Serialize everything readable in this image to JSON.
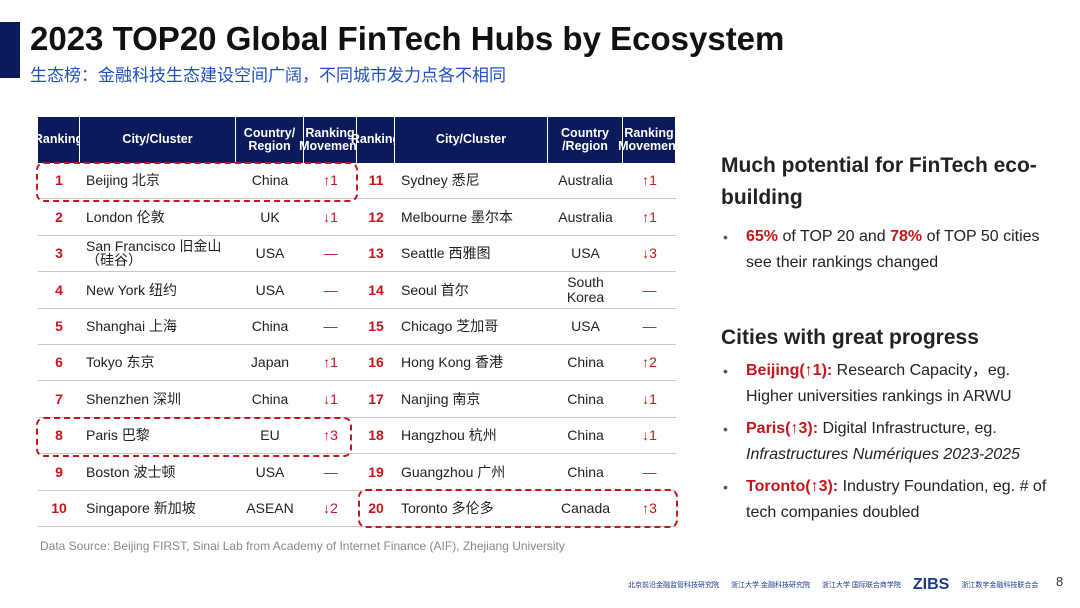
{
  "header": {
    "title": "2023 TOP20 Global FinTech Hubs by Ecosystem",
    "subtitle": "生态榜：金融科技生态建设空间广阔，不同城市发力点各不相同"
  },
  "table": {
    "headers": [
      "Ranking",
      "City/Cluster",
      "Country/ Region",
      "Ranking Movement",
      "Ranking",
      "City/Cluster",
      "Country /Region",
      "Ranking Movement"
    ],
    "rows": [
      [
        1,
        "Beijing 北京",
        "China",
        "↑1",
        11,
        "Sydney 悉尼",
        "Australia",
        "↑1"
      ],
      [
        2,
        "London 伦敦",
        "UK",
        "↓1",
        12,
        "Melbourne 墨尔本",
        "Australia",
        "↑1"
      ],
      [
        3,
        "San Francisco 旧金山（硅谷）",
        "USA",
        "—",
        13,
        "Seattle 西雅图",
        "USA",
        "↓3"
      ],
      [
        4,
        "New York 纽约",
        "USA",
        "—",
        14,
        "Seoul 首尔",
        "South Korea",
        "—"
      ],
      [
        5,
        "Shanghai 上海",
        "China",
        "—",
        15,
        "Chicago 芝加哥",
        "USA",
        "—"
      ],
      [
        6,
        "Tokyo 东京",
        "Japan",
        "↑1",
        16,
        "Hong Kong 香港",
        "China",
        "↑2"
      ],
      [
        7,
        "Shenzhen 深圳",
        "China",
        "↓1",
        17,
        "Nanjing 南京",
        "China",
        "↓1"
      ],
      [
        8,
        "Paris 巴黎",
        "EU",
        "↑3",
        18,
        "Hangzhou 杭州",
        "China",
        "↓1"
      ],
      [
        9,
        "Boston 波士顿",
        "USA",
        "—",
        19,
        "Guangzhou 广州",
        "China",
        "—"
      ],
      [
        10,
        "Singapore 新加坡",
        "ASEAN",
        "↓2",
        20,
        "Toronto 多伦多",
        "Canada",
        "↑3"
      ]
    ]
  },
  "panel": {
    "heading1": "Much potential for FinTech eco-building",
    "bullet1": [
      "65%",
      " of TOP 20 and ",
      "78%",
      " of TOP 50 cities see their rankings changed"
    ],
    "heading2": "Cities with great progress",
    "bullets": [
      [
        "Beijing(↑1):",
        " Research Capacity，eg. Higher universities rankings in ARWU"
      ],
      [
        "Paris(↑3):",
        " Digital Infrastructure, eg. ",
        "Infrastructures Numériques 2023-2025"
      ],
      [
        "Toronto(↑3):",
        " Industry Foundation, eg. # of tech companies doubled"
      ]
    ]
  },
  "footer": {
    "source": "Data Source: Beijing FIRST, Sinai Lab from Academy of Internet Finance (AIF), Zhejiang University",
    "logos": [
      "北京前沿金融监管科技研究院",
      "浙江大学 金融科技研究院",
      "浙江大学 国际联合商学院",
      "ZIBS",
      "浙江数字金融科技联合会"
    ],
    "page": "8"
  }
}
